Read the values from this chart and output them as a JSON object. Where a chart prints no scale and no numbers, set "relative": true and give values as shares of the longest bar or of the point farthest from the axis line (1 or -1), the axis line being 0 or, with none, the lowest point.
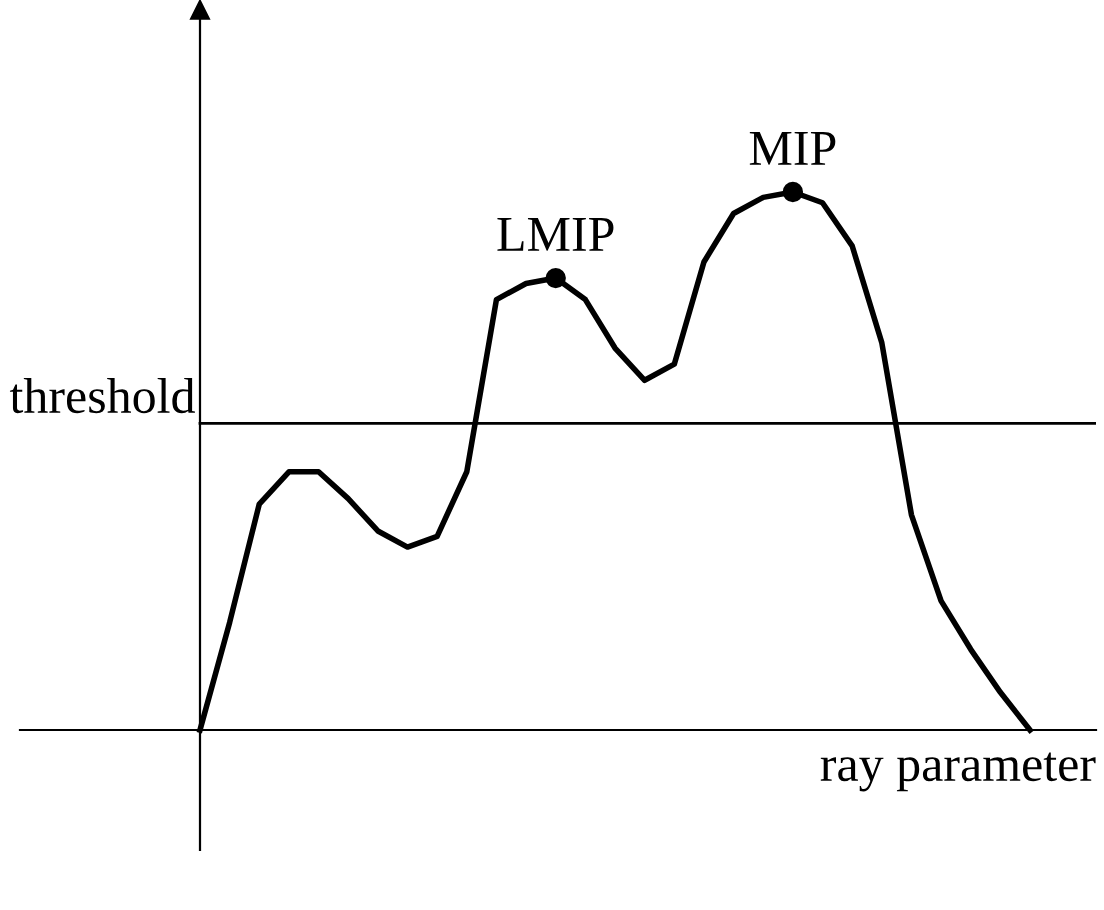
{
  "chart_data": {
    "type": "line",
    "relative": true,
    "xlabel": "ray parameter",
    "categories": [
      null,
      null,
      null,
      null,
      null,
      null,
      null,
      null,
      null,
      null,
      null,
      null,
      null,
      null,
      null,
      null,
      null,
      null,
      null,
      null,
      null,
      null,
      null,
      null,
      null,
      null,
      null,
      null,
      null
    ],
    "series": [
      {
        "color": "#000000",
        "values": [
          0,
          0.2,
          0.42,
          0.48,
          0.48,
          0.43,
          0.37,
          0.34,
          0.36,
          0.48,
          0.8,
          0.83,
          0.84,
          0.8,
          0.71,
          0.65,
          0.68,
          0.87,
          0.96,
          0.99,
          1.0,
          0.98,
          0.9,
          0.72,
          0.4,
          0.24,
          0.15,
          0.07,
          0
        ]
      }
    ],
    "annotations": [
      {
        "text": "LMIP",
        "y": 0.84
      },
      {
        "text": "MIP",
        "y": 1.0
      }
    ],
    "ref_lines": [
      {
        "axis": "y",
        "value": 0.57,
        "label": "threshold",
        "color": "#000000"
      }
    ],
    "grid": false,
    "legend": false
  }
}
